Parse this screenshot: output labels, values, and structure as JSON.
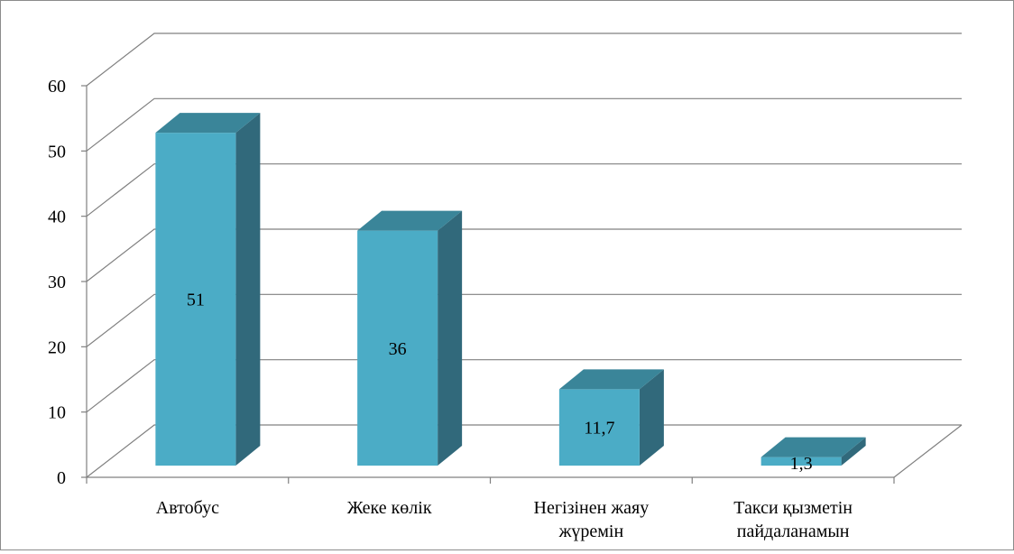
{
  "chart_data": {
    "type": "bar",
    "categories": [
      [
        "Автобус"
      ],
      [
        "Жеке көлік"
      ],
      [
        "Негізінен жаяу",
        "жүремін"
      ],
      [
        "Такси қызметін",
        "пайдаланамын"
      ]
    ],
    "values": [
      51,
      36,
      11.7,
      1.3
    ],
    "data_labels": [
      "51",
      "36",
      "11,7",
      "1,3"
    ],
    "y_ticks": [
      0,
      10,
      20,
      30,
      40,
      50,
      60
    ],
    "ylim": [
      0,
      60
    ],
    "grid": true,
    "three_d": true,
    "colors": {
      "bar_front": "#4bacc6",
      "bar_top": "#3a8599",
      "bar_side": "#31697b",
      "gridline": "#808080",
      "axis": "#808080"
    }
  }
}
